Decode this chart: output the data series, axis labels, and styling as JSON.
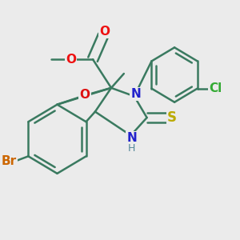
{
  "background_color": "#ebebeb",
  "bond_color": "#3a7a60",
  "bond_width": 1.8,
  "atoms": {
    "O_carbonyl": {
      "label": "O",
      "color": "#ee1111"
    },
    "O_ester": {
      "label": "O",
      "color": "#ee1111"
    },
    "O_bridge": {
      "label": "O",
      "color": "#dd2222"
    },
    "N1": {
      "label": "N",
      "color": "#2222cc"
    },
    "N2": {
      "label": "NH",
      "color": "#2222cc"
    },
    "H": {
      "label": "H",
      "color": "#558899"
    },
    "S": {
      "label": "S",
      "color": "#bbaa00"
    },
    "Br": {
      "label": "Br",
      "color": "#cc6600"
    },
    "Cl": {
      "label": "Cl",
      "color": "#33aa33"
    }
  }
}
